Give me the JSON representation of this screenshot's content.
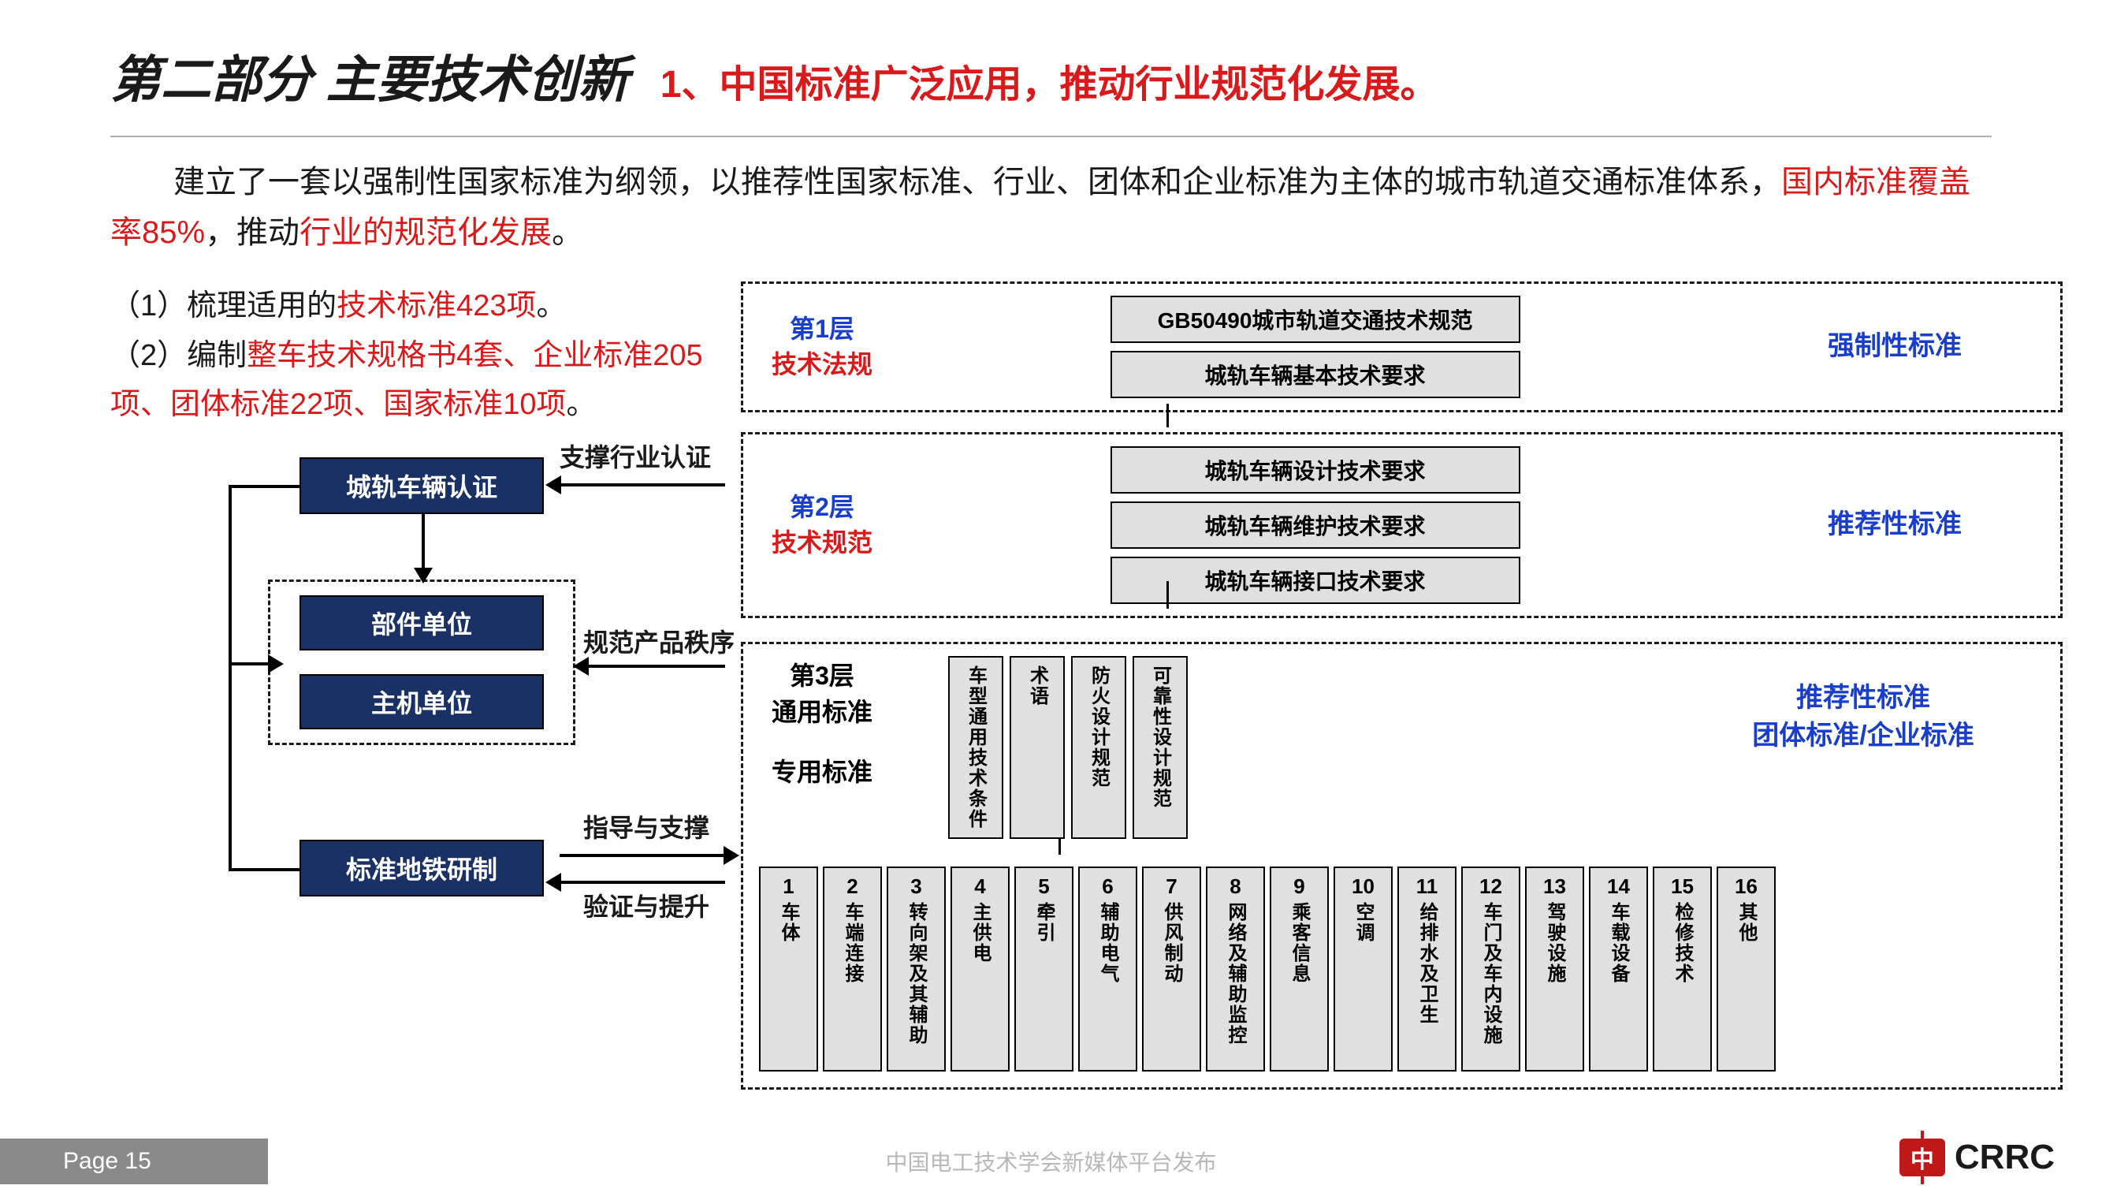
{
  "header": {
    "title_main": "第二部分  主要技术创新",
    "title_sub": "1、中国标准广泛应用，推动行业规范化发展。"
  },
  "intro": {
    "pre1": "建立了一套以强制性国家标准为纲领，以推荐性国家标准、行业、团体和企业标准为主体的城市轨道交通标准体系，",
    "red1": "国内标准覆盖率85%",
    "mid1": "，推动",
    "red2": "行业的规范化发展",
    "post1": "。"
  },
  "bullets": {
    "b1_pre": "（1）梳理适用的",
    "b1_red": "技术标准423项",
    "b1_post": "。",
    "b2_pre": "（2）编制",
    "b2_red": "整车技术规格书4套、企业标准205项、团体标准22项、国家标准10项",
    "b2_post": "。"
  },
  "flow": {
    "cert_box": "城轨车辆认证",
    "unit_parts": "部件单位",
    "unit_main": "主机单位",
    "std_dev": "标准地铁研制",
    "arr1": "支撑行业认证",
    "arr2": "规范产品秩序",
    "arr3": "指导与支撑",
    "arr4": "验证与提升"
  },
  "layers": {
    "l1_line1": "第1层",
    "l1_line2": "技术法规",
    "l1_items": [
      "GB50490城市轨道交通技术规范",
      "城轨车辆基本技术要求"
    ],
    "l1_right": "强制性标准",
    "l2_line1": "第2层",
    "l2_line2": "技术规范",
    "l2_items": [
      "城轨车辆设计技术要求",
      "城轨车辆维护技术要求",
      "城轨车辆接口技术要求"
    ],
    "l2_right": "推荐性标准",
    "l3_line1": "第3层",
    "l3_line2": "通用标准",
    "l3_line3": "专用标准",
    "l3_mini": [
      "车型通用技术条件",
      "术语",
      "防火设计规范",
      "可靠性设计规范"
    ],
    "l3_right1": "推荐性标准",
    "l3_right2": "团体标准/企业标准",
    "l3_nums": [
      {
        "n": "1",
        "t": "车体"
      },
      {
        "n": "2",
        "t": "车端连接"
      },
      {
        "n": "3",
        "t": "转向架及其辅助"
      },
      {
        "n": "4",
        "t": "主供电"
      },
      {
        "n": "5",
        "t": "牵引"
      },
      {
        "n": "6",
        "t": "辅助电气"
      },
      {
        "n": "7",
        "t": "供风制动"
      },
      {
        "n": "8",
        "t": "网络及辅助监控"
      },
      {
        "n": "9",
        "t": "乘客信息"
      },
      {
        "n": "10",
        "t": "空调"
      },
      {
        "n": "11",
        "t": "给排水及卫生"
      },
      {
        "n": "12",
        "t": "车门及车内设施"
      },
      {
        "n": "13",
        "t": "驾驶设施"
      },
      {
        "n": "14",
        "t": "车载设备"
      },
      {
        "n": "15",
        "t": "检修技术"
      },
      {
        "n": "16",
        "t": "其他"
      }
    ]
  },
  "footer": {
    "page": "Page 15",
    "watermark": "中国电工技术学会新媒体平台发布",
    "logo_text": "CRRC",
    "logo_char": "中"
  },
  "colors": {
    "red": "#d91a1a",
    "navy": "#1a3166",
    "blue": "#1a3ecc",
    "grey_box": "#e0e0e0",
    "footer_grey": "#8a8a8a",
    "logo_red": "#c01818"
  }
}
